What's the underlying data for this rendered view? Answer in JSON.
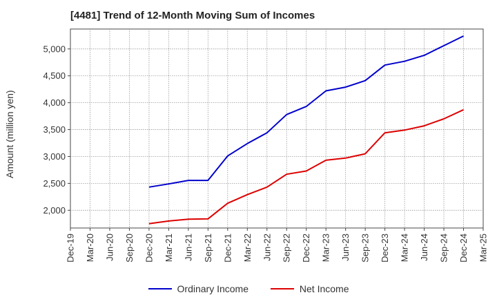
{
  "chart_data": {
    "type": "line",
    "title": "[4481]  Trend of 12-Month Moving Sum of Incomes",
    "xlabel": "",
    "ylabel": "Amount (million yen)",
    "categories": [
      "Dec-19",
      "Mar-20",
      "Jun-20",
      "Sep-20",
      "Dec-20",
      "Mar-21",
      "Jun-21",
      "Sep-21",
      "Dec-21",
      "Mar-22",
      "Jun-22",
      "Sep-22",
      "Dec-22",
      "Mar-23",
      "Jun-23",
      "Sep-23",
      "Dec-23",
      "Mar-24",
      "Jun-24",
      "Sep-24",
      "Dec-24",
      "Mar-25"
    ],
    "yticks": [
      2000,
      2500,
      3000,
      3500,
      4000,
      4500,
      5000
    ],
    "ytick_labels": [
      "2,000",
      "2,500",
      "3,000",
      "3,500",
      "4,000",
      "4,500",
      "5,000"
    ],
    "ylim": [
      1670,
      5370
    ],
    "series": [
      {
        "name": "Ordinary Income",
        "color": "#0000cc",
        "values": [
          null,
          null,
          null,
          null,
          2430,
          2490,
          2555,
          2555,
          3010,
          3240,
          3440,
          3780,
          3930,
          4220,
          4290,
          4410,
          4700,
          4770,
          4880,
          5060,
          5240,
          null
        ]
      },
      {
        "name": "Net Income",
        "color": "#dd0000",
        "values": [
          null,
          null,
          null,
          null,
          1750,
          1800,
          1835,
          1840,
          2130,
          2290,
          2430,
          2670,
          2730,
          2930,
          2970,
          3050,
          3440,
          3490,
          3570,
          3700,
          3870,
          null
        ]
      }
    ],
    "legend_position": "bottom",
    "grid": true
  }
}
